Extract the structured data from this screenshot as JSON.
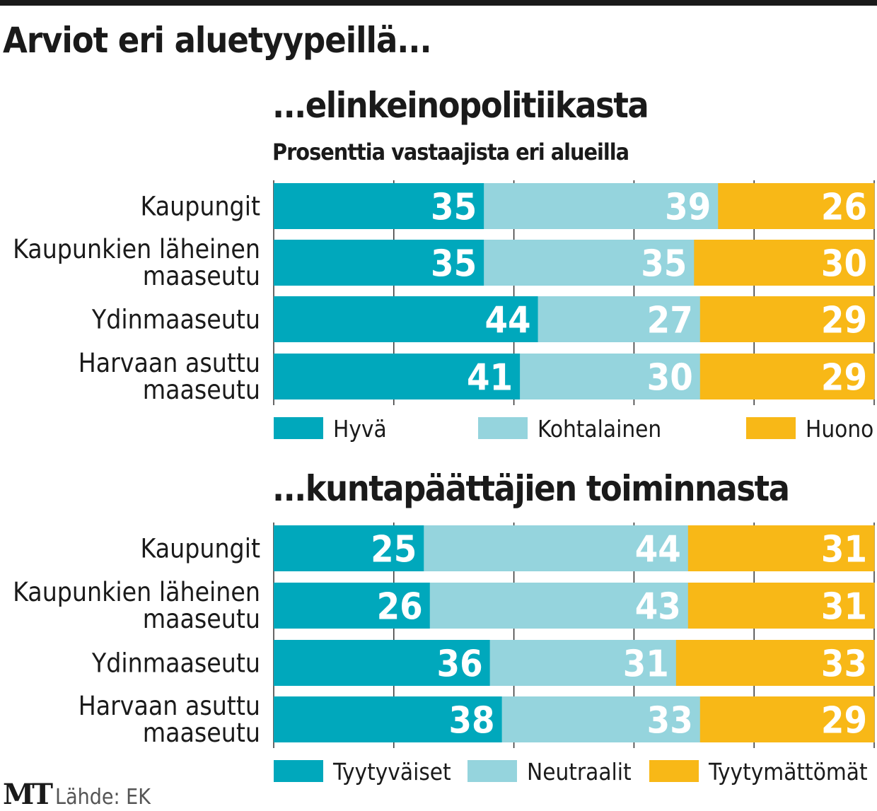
{
  "title": "Arviot eri aluetyypeillä...",
  "footer": {
    "logo": "MT",
    "source": "Lähde: EK"
  },
  "colors": {
    "first": "#00a8bc",
    "second": "#95d4dd",
    "third": "#f8b817",
    "text": "#1a1a1a"
  },
  "chart_data": [
    {
      "type": "bar",
      "orientation": "horizontal-stacked",
      "title": "...elinkeinopolitiikasta",
      "subtitle": "Prosenttia vastaajista eri alueilla",
      "categories": [
        "Kaupungit",
        "Kaupunkien läheinen maaseutu",
        "Ydinmaaseutu",
        "Harvaan asuttu maaseutu"
      ],
      "series": [
        {
          "name": "Hyvä",
          "values": [
            35,
            35,
            44,
            41
          ]
        },
        {
          "name": "Kohtalainen",
          "values": [
            39,
            35,
            27,
            30
          ]
        },
        {
          "name": "Huono",
          "values": [
            26,
            30,
            29,
            29
          ]
        }
      ],
      "xlim": [
        0,
        100
      ],
      "legend": "bottom"
    },
    {
      "type": "bar",
      "orientation": "horizontal-stacked",
      "title": "...kuntapäättäjien toiminnasta",
      "categories": [
        "Kaupungit",
        "Kaupunkien läheinen maaseutu",
        "Ydinmaaseutu",
        "Harvaan asuttu maaseutu"
      ],
      "series": [
        {
          "name": "Tyytyväiset",
          "values": [
            25,
            26,
            36,
            38
          ]
        },
        {
          "name": "Neutraalit",
          "values": [
            44,
            43,
            31,
            33
          ]
        },
        {
          "name": "Tyytymättömät",
          "values": [
            31,
            31,
            33,
            29
          ]
        }
      ],
      "xlim": [
        0,
        100
      ],
      "legend": "bottom"
    }
  ]
}
